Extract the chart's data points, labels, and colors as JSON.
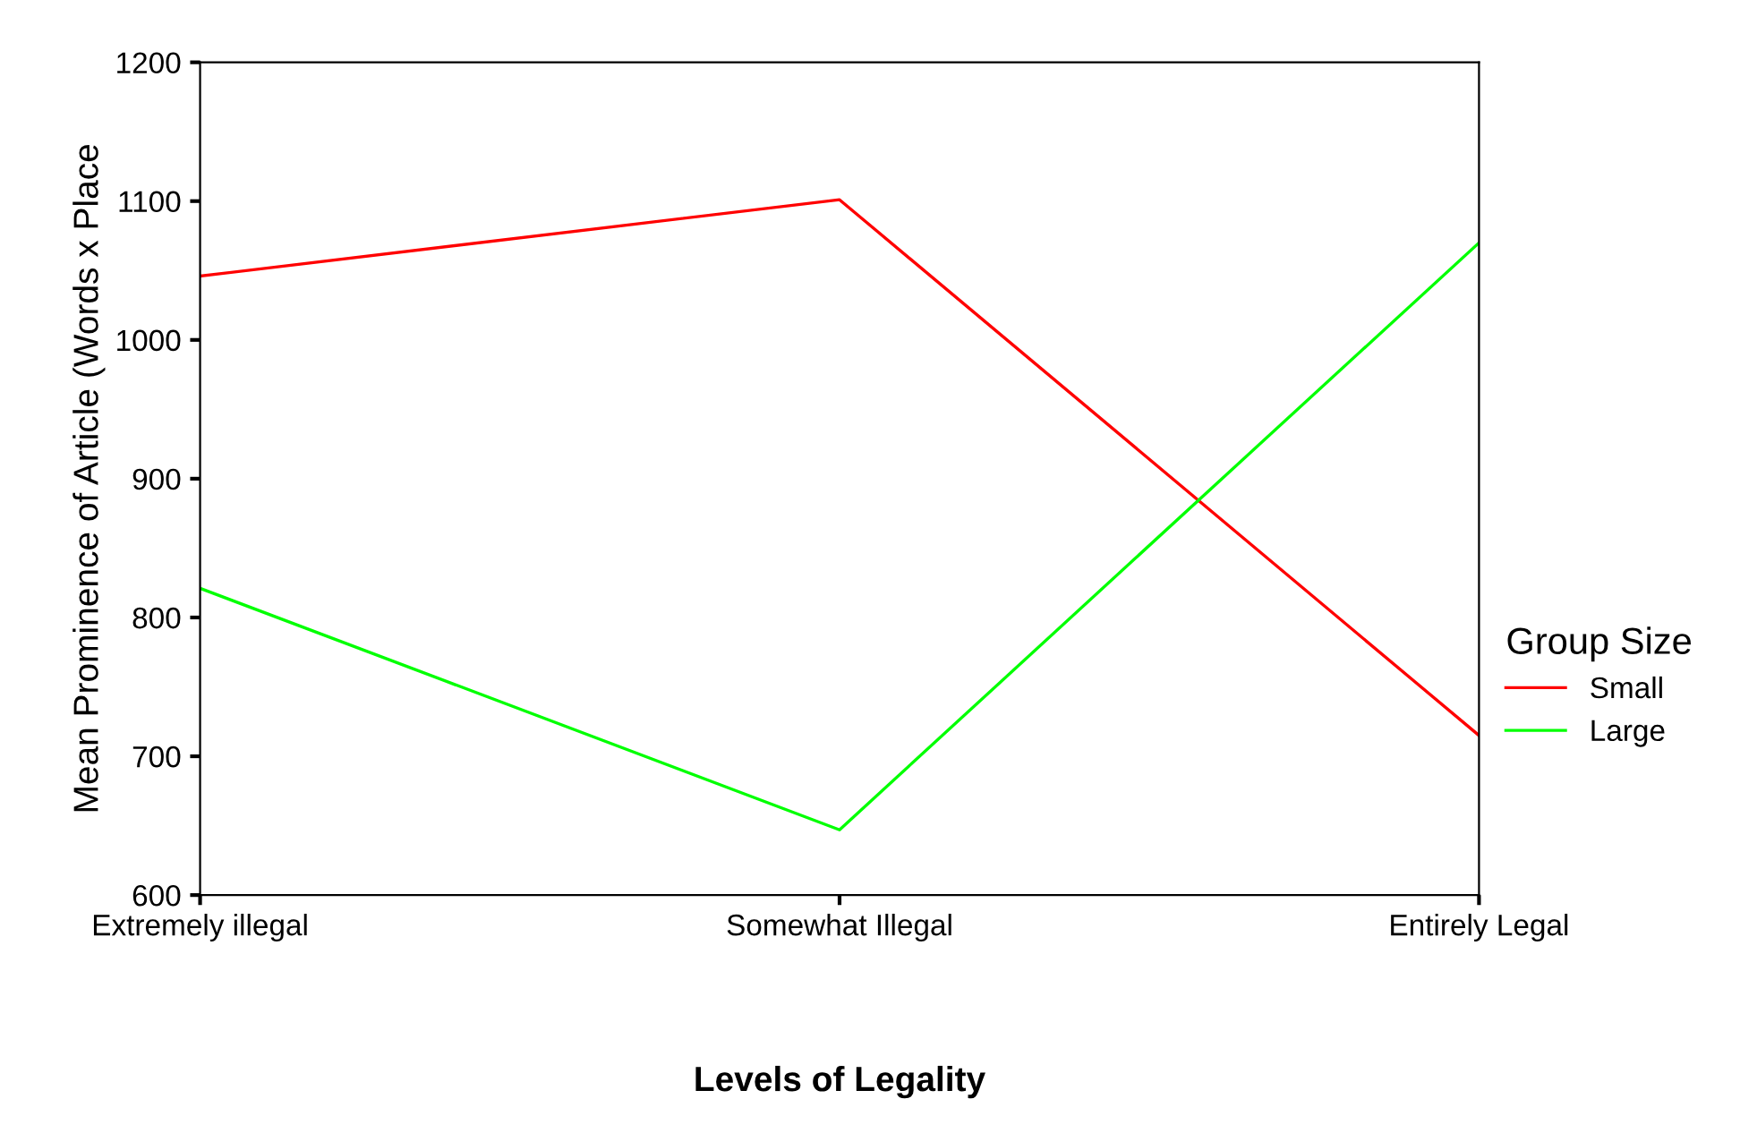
{
  "chart_data": {
    "type": "line",
    "xlabel": "Levels of Legality",
    "ylabel": "Mean Prominence of Article (Words x Place",
    "legend_title": "Group Size",
    "categories": [
      "Extremely illegal",
      "Somewhat Illegal",
      "Entirely Legal"
    ],
    "series": [
      {
        "name": "Small",
        "color": "#ff0000",
        "values": [
          1046,
          1101,
          715
        ]
      },
      {
        "name": "Large",
        "color": "#00ff00",
        "values": [
          821,
          647,
          1070
        ]
      }
    ],
    "ylim": [
      600,
      1200
    ],
    "yticks": [
      600,
      700,
      800,
      900,
      1000,
      1100,
      1200
    ],
    "grid": false,
    "legend": "right",
    "marker": "none",
    "line_style": "solid"
  }
}
